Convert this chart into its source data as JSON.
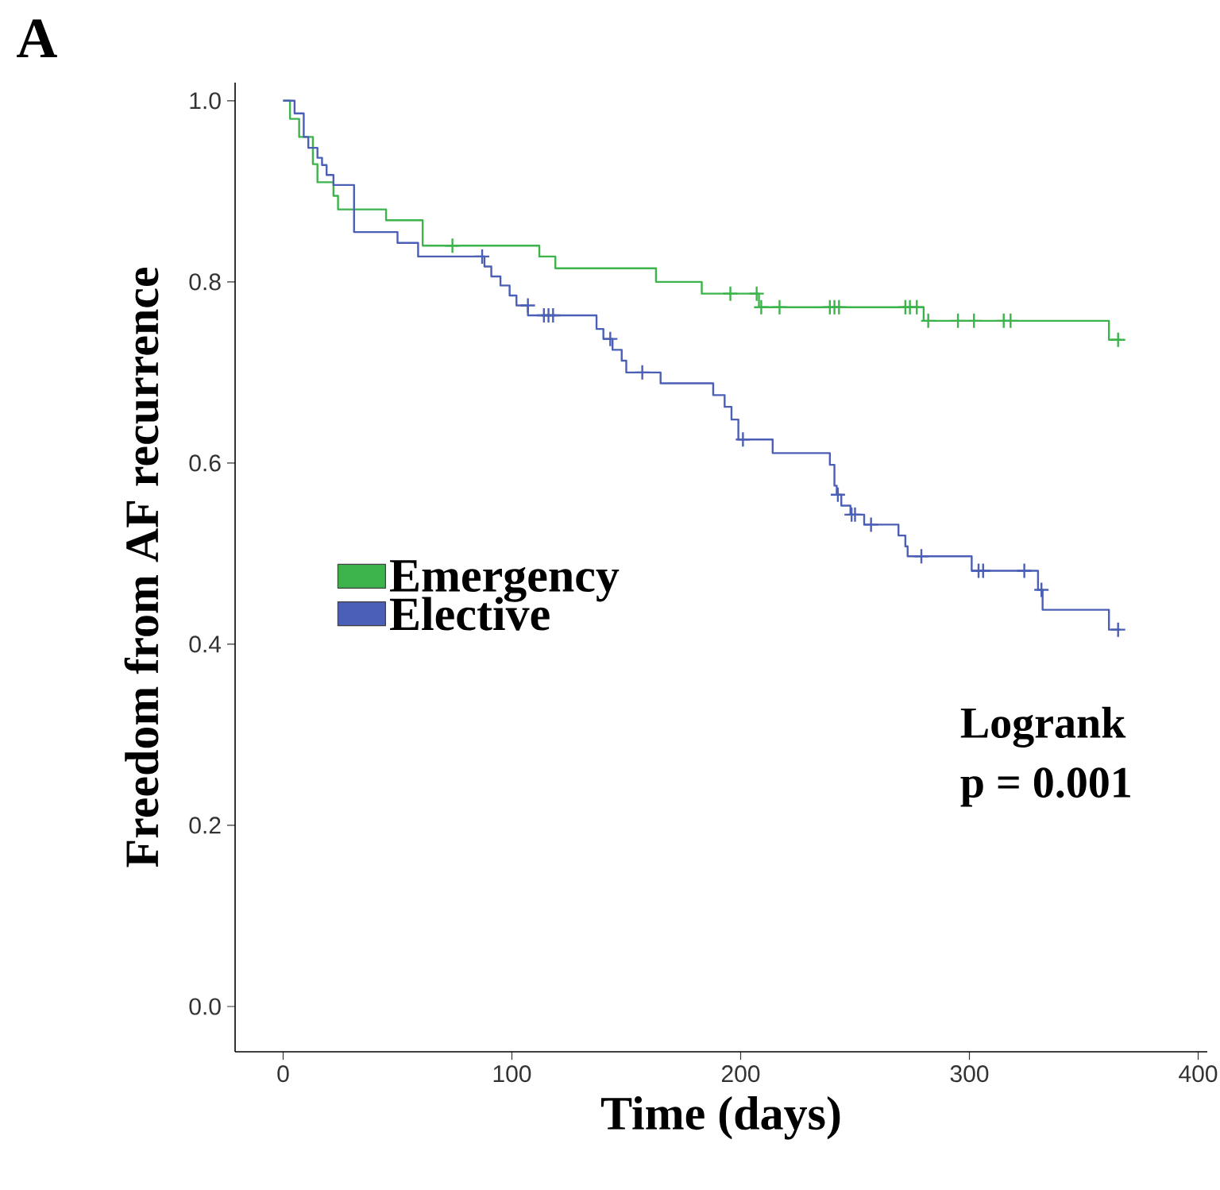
{
  "chart_data": {
    "type": "step",
    "title": "A",
    "xlabel": "Time (days)",
    "ylabel": "Freedom from AF recurrence",
    "annotations": [
      "Logrank",
      "p = 0.001"
    ],
    "xlim": [
      -21,
      404
    ],
    "ylim": [
      -0.05,
      1.02
    ],
    "xticks": [
      0,
      100,
      200,
      300,
      400
    ],
    "yticks": [
      {
        "value": 0,
        "label": "0.0"
      },
      {
        "value": 0.2,
        "label": "0.2"
      },
      {
        "value": 0.4,
        "label": "0.4"
      },
      {
        "value": 0.6,
        "label": "0.6"
      },
      {
        "value": 0.8,
        "label": "0.8"
      },
      {
        "value": 1,
        "label": "1.0"
      }
    ],
    "legend": "left",
    "series": [
      {
        "name": "Emergency",
        "color": "#3cb44b",
        "x": [
          0,
          3,
          7,
          13,
          15,
          22,
          24,
          45,
          61,
          112,
          119,
          163,
          183,
          208,
          280,
          361,
          366
        ],
        "values": [
          1.0,
          0.98,
          0.96,
          0.93,
          0.91,
          0.895,
          0.88,
          0.868,
          0.84,
          0.828,
          0.815,
          0.8,
          0.787,
          0.772,
          0.757,
          0.736,
          0.736
        ]
      },
      {
        "name": "Elective",
        "color": "#4a5fb5",
        "x": [
          0,
          5,
          9,
          11,
          15,
          17,
          19,
          22,
          31,
          50,
          59,
          88,
          91,
          95,
          99,
          102,
          107,
          137,
          140,
          144,
          148,
          150,
          165,
          188,
          193,
          196,
          199,
          214,
          239,
          241,
          242,
          244,
          248,
          254,
          269,
          272,
          273,
          301,
          330,
          332,
          361,
          366
        ],
        "values": [
          1.0,
          0.986,
          0.96,
          0.948,
          0.937,
          0.929,
          0.918,
          0.907,
          0.855,
          0.843,
          0.828,
          0.817,
          0.806,
          0.796,
          0.785,
          0.774,
          0.763,
          0.748,
          0.737,
          0.725,
          0.713,
          0.7,
          0.688,
          0.675,
          0.662,
          0.648,
          0.626,
          0.611,
          0.598,
          0.575,
          0.565,
          0.553,
          0.543,
          0.532,
          0.52,
          0.508,
          0.497,
          0.481,
          0.46,
          0.438,
          0.416,
          0.416
        ]
      },
      {
        "color": "#3cb44b",
        "type": "scatter",
        "marker": "cross",
        "x": [
          74,
          195.5,
          207,
          209,
          217,
          239,
          241,
          243,
          272,
          274,
          277,
          282,
          295,
          302,
          315,
          318,
          365
        ],
        "values": [
          0.84,
          0.787,
          0.787,
          0.772,
          0.772,
          0.772,
          0.772,
          0.772,
          0.772,
          0.772,
          0.772,
          0.757,
          0.757,
          0.757,
          0.757,
          0.757,
          0.736
        ]
      },
      {
        "color": "#4a5fb5",
        "type": "scatter",
        "marker": "cross",
        "x": [
          87,
          107,
          114,
          116,
          118,
          143,
          157,
          201,
          242.5,
          248.5,
          250,
          257,
          279,
          304,
          306,
          324,
          331.5,
          365
        ],
        "values": [
          0.828,
          0.774,
          0.763,
          0.763,
          0.763,
          0.737,
          0.7,
          0.626,
          0.565,
          0.543,
          0.543,
          0.532,
          0.497,
          0.481,
          0.481,
          0.481,
          0.46,
          0.416
        ]
      }
    ]
  }
}
